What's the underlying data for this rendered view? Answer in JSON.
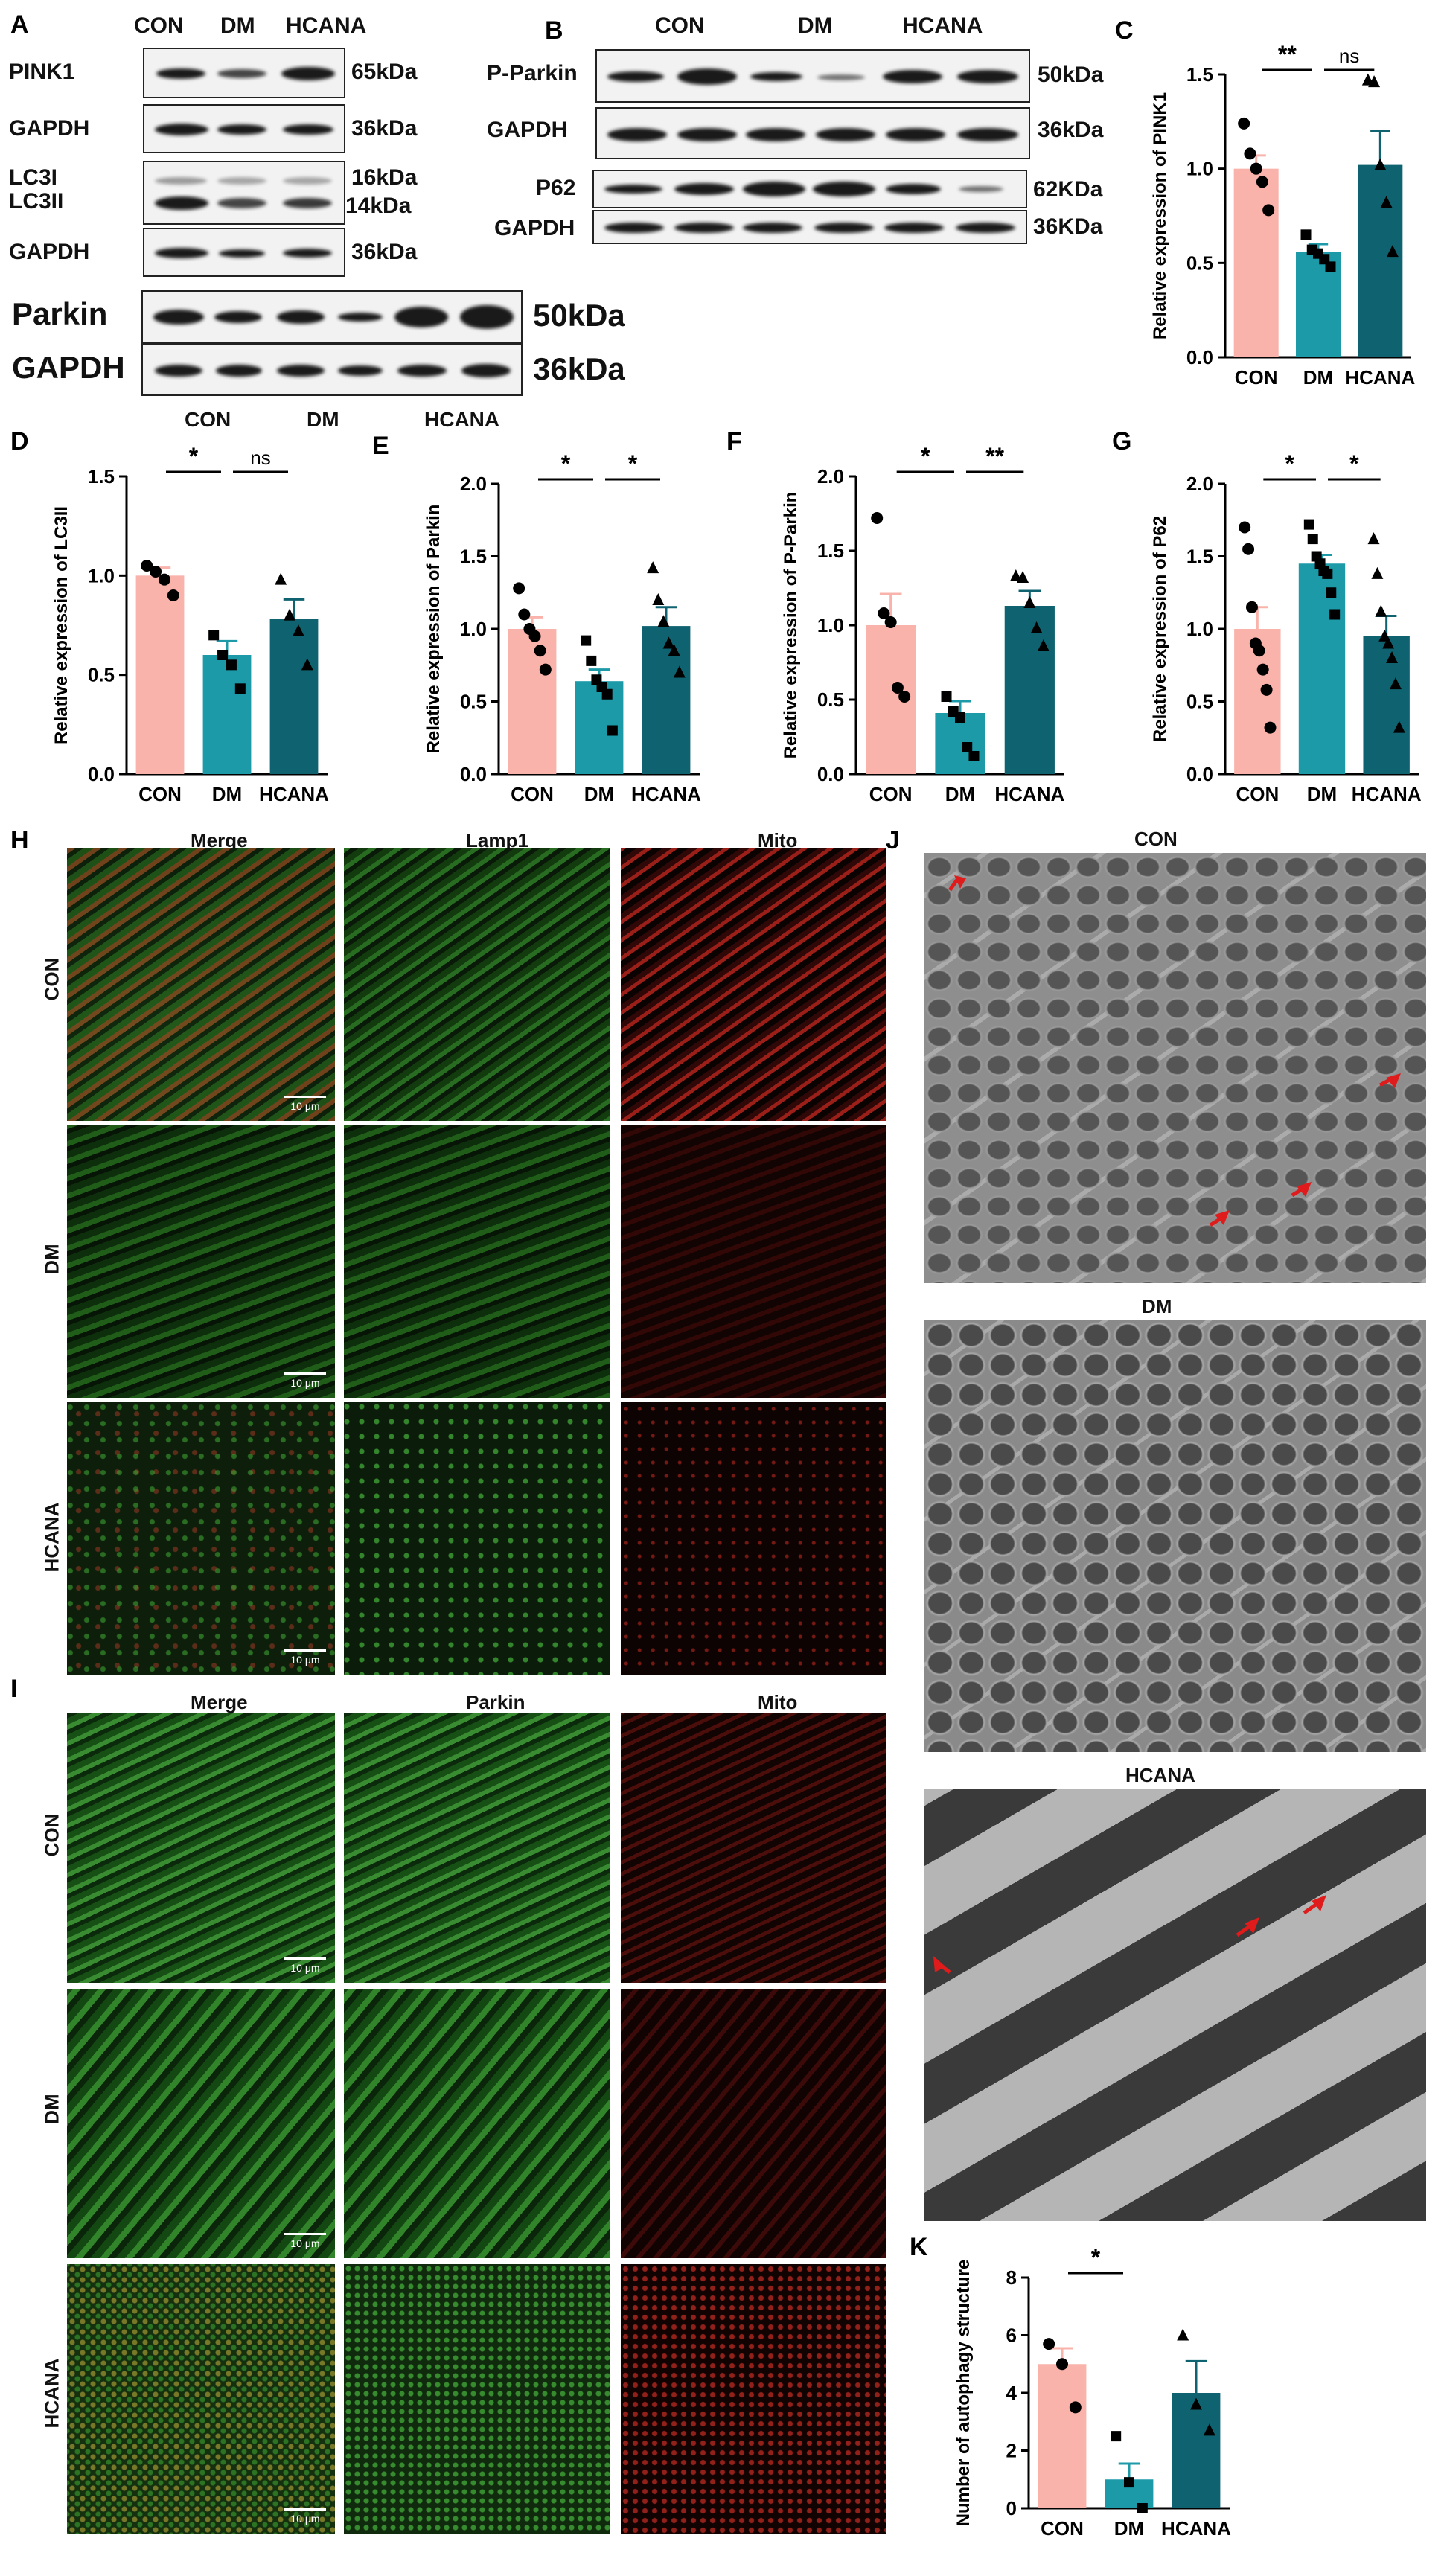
{
  "panel_labels": {
    "A": "A",
    "B": "B",
    "C": "C",
    "D": "D",
    "E": "E",
    "F": "F",
    "G": "G",
    "H": "H",
    "I": "I",
    "J": "J",
    "K": "K"
  },
  "blot_A": {
    "groups": [
      "CON",
      "DM",
      "HCANA"
    ],
    "rows": [
      {
        "name": "PINK1",
        "kda": "65kDa"
      },
      {
        "name": "GAPDH",
        "kda": "36kDa"
      },
      {
        "name": "LC3I",
        "name2": "LC3II",
        "kda": "16kDa",
        "kda2": "14kDa"
      },
      {
        "name": "GAPDH",
        "kda": "36kDa"
      }
    ],
    "parkin": {
      "name": "Parkin",
      "kda": "50kDa"
    },
    "gapdh2": {
      "name": "GAPDH",
      "kda": "36kDa"
    },
    "bottom_groups": [
      "CON",
      "DM",
      "HCANA"
    ]
  },
  "blot_B": {
    "groups": [
      "CON",
      "DM",
      "HCANA"
    ],
    "rows": [
      {
        "name": "P-Parkin",
        "kda": "50kDa"
      },
      {
        "name": "GAPDH",
        "kda": "36kDa"
      },
      {
        "name": "P62",
        "kda": "62KDa"
      },
      {
        "name": "GAPDH",
        "kda": "36KDa"
      }
    ]
  },
  "colors": {
    "con": "#f9b3ab",
    "dm": "#1c9aa8",
    "hcana": "#0f6370"
  },
  "chart_data": [
    {
      "panel": "C",
      "type": "bar",
      "categories": [
        "CON",
        "DM",
        "HCANA"
      ],
      "values": [
        1.0,
        0.56,
        1.02
      ],
      "errors": [
        0.07,
        0.04,
        0.18
      ],
      "points": [
        [
          1.24,
          1.08,
          1.0,
          0.93,
          0.78
        ],
        [
          0.65,
          0.57,
          0.55,
          0.52,
          0.48
        ],
        [
          1.47,
          1.46,
          1.02,
          0.82,
          0.56
        ]
      ],
      "ylabel": "Relative expression of PINK1",
      "ylim": [
        0,
        1.5
      ],
      "yticks": [
        0.0,
        0.5,
        1.0,
        1.5
      ],
      "sig": [
        {
          "a": 0,
          "b": 1,
          "text": "**"
        },
        {
          "a": 1,
          "b": 2,
          "text": "ns"
        }
      ]
    },
    {
      "panel": "D",
      "type": "bar",
      "categories": [
        "CON",
        "DM",
        "HCANA"
      ],
      "values": [
        1.0,
        0.6,
        0.78
      ],
      "errors": [
        0.04,
        0.07,
        0.1
      ],
      "points": [
        [
          1.05,
          1.02,
          0.98,
          0.9
        ],
        [
          0.7,
          0.6,
          0.55,
          0.43
        ],
        [
          0.98,
          0.8,
          0.72,
          0.55
        ]
      ],
      "ylabel": "Relative expression of LC3II",
      "ylim": [
        0,
        1.5
      ],
      "yticks": [
        0.0,
        0.5,
        1.0,
        1.5
      ],
      "sig": [
        {
          "a": 0,
          "b": 1,
          "text": "*"
        },
        {
          "a": 1,
          "b": 2,
          "text": "ns"
        }
      ]
    },
    {
      "panel": "E",
      "type": "bar",
      "categories": [
        "CON",
        "DM",
        "HCANA"
      ],
      "values": [
        1.0,
        0.64,
        1.02
      ],
      "errors": [
        0.08,
        0.08,
        0.13
      ],
      "points": [
        [
          1.28,
          1.1,
          1.0,
          0.95,
          0.85,
          0.72
        ],
        [
          0.92,
          0.78,
          0.65,
          0.6,
          0.55,
          0.3
        ],
        [
          1.42,
          1.2,
          1.05,
          0.9,
          0.85,
          0.7
        ]
      ],
      "ylabel": "Relative expression of Parkin",
      "ylim": [
        0,
        2.0
      ],
      "yticks": [
        0.0,
        0.5,
        1.0,
        1.5,
        2.0
      ],
      "sig": [
        {
          "a": 0,
          "b": 1,
          "text": "*"
        },
        {
          "a": 1,
          "b": 2,
          "text": "*"
        }
      ]
    },
    {
      "panel": "F",
      "type": "bar",
      "categories": [
        "CON",
        "DM",
        "HCANA"
      ],
      "values": [
        1.0,
        0.41,
        1.13
      ],
      "errors": [
        0.21,
        0.08,
        0.1
      ],
      "points": [
        [
          1.72,
          1.08,
          1.02,
          0.58,
          0.52
        ],
        [
          0.52,
          0.42,
          0.38,
          0.18,
          0.12
        ],
        [
          1.33,
          1.32,
          1.15,
          0.98,
          0.86
        ]
      ],
      "ylabel": "Relative expression of P-Parkin",
      "ylim": [
        0,
        2.0
      ],
      "yticks": [
        0.0,
        0.5,
        1.0,
        1.5,
        2.0
      ],
      "sig": [
        {
          "a": 0,
          "b": 1,
          "text": "*"
        },
        {
          "a": 1,
          "b": 2,
          "text": "**"
        }
      ]
    },
    {
      "panel": "G",
      "type": "bar",
      "categories": [
        "CON",
        "DM",
        "HCANA"
      ],
      "values": [
        1.0,
        1.45,
        0.95
      ],
      "errors": [
        0.15,
        0.06,
        0.14
      ],
      "points": [
        [
          1.7,
          1.55,
          1.15,
          0.9,
          0.85,
          0.72,
          0.58,
          0.32
        ],
        [
          1.72,
          1.62,
          1.5,
          1.45,
          1.4,
          1.38,
          1.25,
          1.1
        ],
        [
          1.62,
          1.38,
          1.12,
          0.95,
          0.9,
          0.8,
          0.62,
          0.32
        ]
      ],
      "ylabel": "Relative expression of P62",
      "ylim": [
        0,
        2.0
      ],
      "yticks": [
        0.0,
        0.5,
        1.0,
        1.5,
        2.0
      ],
      "sig": [
        {
          "a": 0,
          "b": 1,
          "text": "*"
        },
        {
          "a": 1,
          "b": 2,
          "text": "*"
        }
      ]
    },
    {
      "panel": "K",
      "type": "bar",
      "categories": [
        "CON",
        "DM",
        "HCANA"
      ],
      "values": [
        5.0,
        1.0,
        4.0
      ],
      "errors": [
        0.55,
        0.55,
        1.1
      ],
      "points": [
        [
          5.7,
          5.0,
          3.5
        ],
        [
          2.5,
          0.9,
          0.0
        ],
        [
          6.0,
          3.6,
          2.7
        ]
      ],
      "ylabel": "Number of autophagy structure",
      "ylim": [
        0,
        8
      ],
      "yticks": [
        0,
        2,
        4,
        6,
        8
      ],
      "sig": [
        {
          "a": 0,
          "b": 1,
          "text": "*"
        }
      ]
    }
  ],
  "panel_H": {
    "cols": [
      "Merge",
      "Lamp1",
      "Mito"
    ],
    "rows": [
      "CON",
      "DM",
      "HCANA"
    ],
    "scale": "10 μm"
  },
  "panel_I": {
    "cols": [
      "Merge",
      "Parkin",
      "Mito"
    ],
    "rows": [
      "CON",
      "DM",
      "HCANA"
    ],
    "scale": "10 μm"
  },
  "panel_J": {
    "titles": [
      "CON",
      "DM",
      "HCANA"
    ]
  }
}
